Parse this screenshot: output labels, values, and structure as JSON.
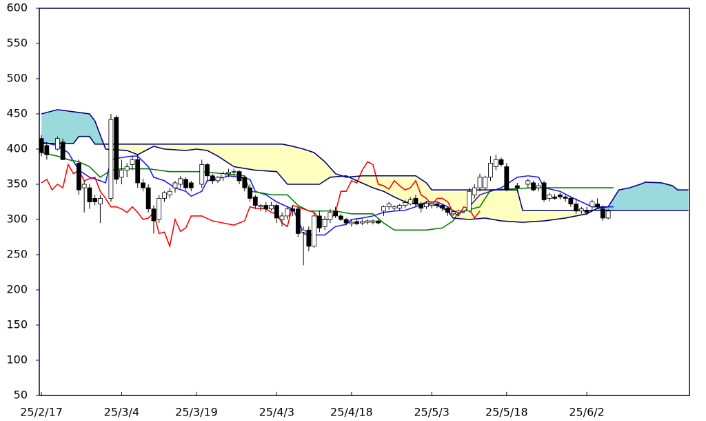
{
  "chart_data": {
    "type": "candlestick",
    "xlim": [
      -0.4,
      121.2
    ],
    "ylim": [
      50,
      600
    ],
    "yticks": [
      50,
      100,
      150,
      200,
      250,
      300,
      350,
      400,
      450,
      500,
      550,
      600
    ],
    "xticks": [
      {
        "value": 0,
        "label": "25/2/17"
      },
      {
        "value": 15,
        "label": "25/3/4"
      },
      {
        "value": 29,
        "label": "25/3/19"
      },
      {
        "value": 44,
        "label": "25/4/3"
      },
      {
        "value": 58,
        "label": "25/4/18"
      },
      {
        "value": 73,
        "label": "25/5/3"
      },
      {
        "value": 87,
        "label": "25/5/18"
      },
      {
        "value": 102,
        "label": "25/6/2"
      }
    ],
    "up_color": "#ffffff",
    "down_color": "#000000",
    "candles": [
      [
        0,
        415,
        420,
        390,
        395
      ],
      [
        1,
        405,
        410,
        385,
        392
      ],
      [
        3,
        400,
        418,
        398,
        415
      ],
      [
        4,
        410,
        415,
        385,
        385
      ],
      [
        7,
        380,
        385,
        335,
        342
      ],
      [
        8,
        345,
        355,
        310,
        350
      ],
      [
        9,
        345,
        350,
        315,
        325
      ],
      [
        10,
        330,
        335,
        320,
        325
      ],
      [
        11,
        322,
        335,
        295,
        330
      ],
      [
        13,
        330,
        450,
        325,
        442
      ],
      [
        14,
        445,
        448,
        350,
        357
      ],
      [
        15,
        360,
        385,
        350,
        370
      ],
      [
        16,
        370,
        380,
        360,
        375
      ],
      [
        17,
        378,
        390,
        370,
        385
      ],
      [
        18,
        385,
        392,
        345,
        352
      ],
      [
        19,
        352,
        358,
        340,
        345
      ],
      [
        20,
        345,
        350,
        310,
        315
      ],
      [
        21,
        315,
        320,
        280,
        298
      ],
      [
        22,
        300,
        335,
        295,
        330
      ],
      [
        23,
        330,
        340,
        325,
        338
      ],
      [
        24,
        335,
        345,
        330,
        340
      ],
      [
        25,
        345,
        355,
        338,
        352
      ],
      [
        26,
        350,
        362,
        345,
        358
      ],
      [
        27,
        357,
        360,
        342,
        345
      ],
      [
        28,
        352,
        355,
        340,
        345
      ],
      [
        30,
        350,
        385,
        345,
        378
      ],
      [
        31,
        378,
        380,
        355,
        362
      ],
      [
        32,
        362,
        365,
        350,
        355
      ],
      [
        33,
        355,
        362,
        352,
        360
      ],
      [
        34,
        360,
        368,
        355,
        365
      ],
      [
        35,
        365,
        372,
        360,
        367
      ],
      [
        36,
        367,
        372,
        362,
        368
      ],
      [
        37,
        368,
        370,
        350,
        355
      ],
      [
        38,
        360,
        362,
        340,
        345
      ],
      [
        39,
        345,
        350,
        325,
        330
      ],
      [
        40,
        332,
        335,
        315,
        320
      ],
      [
        41,
        318,
        322,
        312,
        320
      ],
      [
        42,
        320,
        325,
        310,
        315
      ],
      [
        43,
        315,
        325,
        312,
        320
      ],
      [
        44,
        320,
        322,
        295,
        302
      ],
      [
        45,
        300,
        310,
        290,
        305
      ],
      [
        46,
        305,
        318,
        300,
        315
      ],
      [
        47,
        315,
        320,
        305,
        312
      ],
      [
        48,
        315,
        318,
        275,
        280
      ],
      [
        49,
        282,
        290,
        235,
        285
      ],
      [
        50,
        285,
        290,
        255,
        262
      ],
      [
        51,
        262,
        310,
        260,
        305
      ],
      [
        52,
        305,
        312,
        282,
        288
      ],
      [
        53,
        290,
        305,
        285,
        300
      ],
      [
        54,
        300,
        315,
        295,
        310
      ],
      [
        55,
        312,
        318,
        302,
        305
      ],
      [
        56,
        305,
        308,
        298,
        300
      ],
      [
        57,
        300,
        302,
        292,
        295
      ],
      [
        58,
        294,
        300,
        290,
        296
      ],
      [
        59,
        297,
        300,
        292,
        294
      ],
      [
        60,
        295,
        300,
        292,
        297
      ],
      [
        61,
        296,
        300,
        293,
        298
      ],
      [
        62,
        296,
        300,
        293,
        298
      ],
      [
        63,
        298,
        300,
        293,
        295
      ],
      [
        64,
        312,
        320,
        305,
        318
      ],
      [
        65,
        318,
        325,
        314,
        322
      ],
      [
        66,
        316,
        320,
        312,
        318
      ],
      [
        67,
        316,
        322,
        312,
        320
      ],
      [
        68,
        320,
        328,
        316,
        324
      ],
      [
        69,
        322,
        332,
        320,
        328
      ],
      [
        70,
        330,
        335,
        318,
        322
      ],
      [
        71,
        322,
        325,
        310,
        316
      ],
      [
        72,
        318,
        326,
        315,
        323
      ],
      [
        73,
        320,
        325,
        316,
        322
      ],
      [
        74,
        322,
        324,
        316,
        320
      ],
      [
        75,
        320,
        322,
        312,
        316
      ],
      [
        76,
        316,
        318,
        305,
        310
      ],
      [
        77,
        308,
        314,
        305,
        311
      ],
      [
        78,
        310,
        314,
        306,
        312
      ],
      [
        80,
        312,
        345,
        310,
        340
      ],
      [
        81,
        335,
        350,
        330,
        345
      ],
      [
        82,
        345,
        365,
        340,
        360
      ],
      [
        83,
        345,
        362,
        342,
        360
      ],
      [
        84,
        360,
        390,
        355,
        380
      ],
      [
        85,
        375,
        392,
        370,
        385
      ],
      [
        86,
        385,
        388,
        375,
        378
      ],
      [
        87,
        375,
        380,
        340,
        342
      ],
      [
        89,
        348,
        352,
        340,
        345
      ],
      [
        91,
        350,
        358,
        345,
        355
      ],
      [
        92,
        352,
        355,
        340,
        342
      ],
      [
        93,
        345,
        352,
        340,
        348
      ],
      [
        94,
        352,
        355,
        325,
        328
      ],
      [
        95,
        330,
        338,
        326,
        335
      ],
      [
        96,
        332,
        336,
        328,
        330
      ],
      [
        97,
        335,
        338,
        328,
        332
      ],
      [
        98,
        332,
        335,
        325,
        330
      ],
      [
        99,
        330,
        332,
        318,
        322
      ],
      [
        100,
        322,
        330,
        308,
        312
      ],
      [
        101,
        312,
        318,
        308,
        315
      ],
      [
        102,
        312,
        318,
        306,
        310
      ],
      [
        103,
        318,
        328,
        312,
        325
      ],
      [
        104,
        322,
        330,
        315,
        318
      ],
      [
        105,
        315,
        320,
        298,
        302
      ],
      [
        106,
        302,
        315,
        300,
        312
      ]
    ],
    "lines": [
      {
        "color": "#1a1aff",
        "x": [
          0,
          3,
          5,
          7,
          9,
          11,
          12,
          13,
          15,
          17,
          18,
          20,
          21,
          23,
          25,
          27,
          28,
          30,
          31,
          33,
          35,
          37,
          39,
          40,
          42,
          44,
          46,
          47,
          48,
          49,
          50,
          53,
          55,
          57,
          58,
          60,
          62,
          64,
          66,
          68,
          70,
          72,
          74,
          76,
          77,
          79,
          80,
          82,
          84,
          86,
          89,
          91,
          93,
          94,
          97,
          99,
          101,
          103,
          105,
          107
        ],
        "values": [
          410,
          405,
          395,
          370,
          360,
          355,
          352,
          385,
          388,
          390,
          390,
          375,
          360,
          355,
          345,
          340,
          333,
          340,
          355,
          358,
          362,
          360,
          357,
          340,
          335,
          325,
          318,
          315,
          300,
          280,
          278,
          278,
          290,
          293,
          300,
          302,
          305,
          310,
          312,
          313,
          318,
          325,
          325,
          318,
          312,
          310,
          318,
          335,
          340,
          345,
          360,
          362,
          360,
          345,
          340,
          332,
          325,
          318,
          318,
          318
        ]
      },
      {
        "color": "#008000",
        "x": [
          0,
          3,
          5,
          7,
          9,
          11,
          13,
          15,
          20,
          24,
          30,
          38,
          39,
          41,
          43,
          46,
          48,
          50,
          55,
          58,
          62,
          64,
          66,
          72,
          75,
          77,
          78,
          82,
          84,
          92,
          101,
          107
        ],
        "values": [
          395,
          390,
          385,
          382,
          375,
          360,
          370,
          372,
          372,
          368,
          368,
          362,
          340,
          338,
          335,
          335,
          320,
          312,
          312,
          308,
          308,
          295,
          285,
          285,
          288,
          298,
          310,
          318,
          342,
          345,
          345,
          345
        ]
      },
      {
        "color": "#ff0000",
        "x": [
          0,
          1,
          2,
          3,
          4,
          5,
          6,
          7,
          8,
          9,
          10,
          11,
          12,
          13,
          14,
          15,
          16,
          17,
          18,
          19,
          20,
          21,
          22,
          23,
          24,
          25,
          26,
          27,
          28,
          30,
          32,
          34,
          36,
          38,
          39,
          40,
          42,
          43,
          44,
          45,
          46,
          47,
          49,
          51,
          52,
          54,
          55,
          56,
          57,
          58,
          59,
          60,
          61,
          62,
          63,
          64,
          65,
          66,
          67,
          68,
          69,
          70,
          71,
          72,
          73,
          74,
          75,
          76,
          77,
          78,
          79,
          80,
          81,
          82
        ],
        "values": [
          352,
          357,
          342,
          350,
          345,
          378,
          365,
          370,
          355,
          358,
          360,
          340,
          330,
          318,
          318,
          315,
          310,
          318,
          310,
          300,
          302,
          310,
          280,
          282,
          262,
          300,
          283,
          288,
          305,
          305,
          298,
          295,
          292,
          298,
          318,
          316,
          315,
          310,
          308,
          295,
          290,
          320,
          315,
          310,
          300,
          300,
          310,
          340,
          340,
          355,
          352,
          370,
          382,
          378,
          350,
          348,
          343,
          355,
          348,
          342,
          345,
          355,
          335,
          330,
          320,
          330,
          330,
          325,
          310,
          305,
          318,
          315,
          302,
          312
        ]
      },
      {
        "color": "#000080",
        "x": [
          0,
          3,
          7,
          9,
          10,
          11,
          12,
          16,
          18,
          20,
          21,
          23,
          27,
          29,
          31,
          33,
          36,
          40,
          44,
          46,
          52,
          54,
          57,
          59,
          62,
          64,
          66,
          68,
          70,
          72,
          74,
          76,
          77,
          80,
          83,
          86,
          90,
          94,
          98,
          102,
          104,
          106,
          108,
          110,
          112,
          113,
          116,
          118,
          119,
          121
        ],
        "values": [
          450,
          456,
          452,
          450,
          440,
          420,
          400,
          398,
          392,
          400,
          404,
          400,
          398,
          400,
          398,
          390,
          375,
          370,
          368,
          350,
          350,
          360,
          362,
          355,
          345,
          340,
          332,
          325,
          322,
          322,
          320,
          312,
          302,
          300,
          302,
          298,
          296,
          298,
          302,
          308,
          316,
          318,
          342,
          345,
          350,
          353,
          352,
          348,
          342,
          342
        ]
      },
      {
        "color": "#000080",
        "x": [
          0,
          6,
          7,
          9,
          10,
          45,
          47,
          49,
          51,
          53,
          55,
          57,
          60,
          63,
          66,
          70,
          72,
          73,
          89,
          90,
          121
        ],
        "values": [
          408,
          408,
          418,
          418,
          407,
          407,
          404,
          400,
          395,
          382,
          365,
          360,
          362,
          362,
          362,
          362,
          352,
          342,
          342,
          313,
          313
        ]
      }
    ],
    "cloud_up_color": "#9ad9dc",
    "cloud_down_color": "#ffffc0",
    "axis_color": "#00004a"
  }
}
